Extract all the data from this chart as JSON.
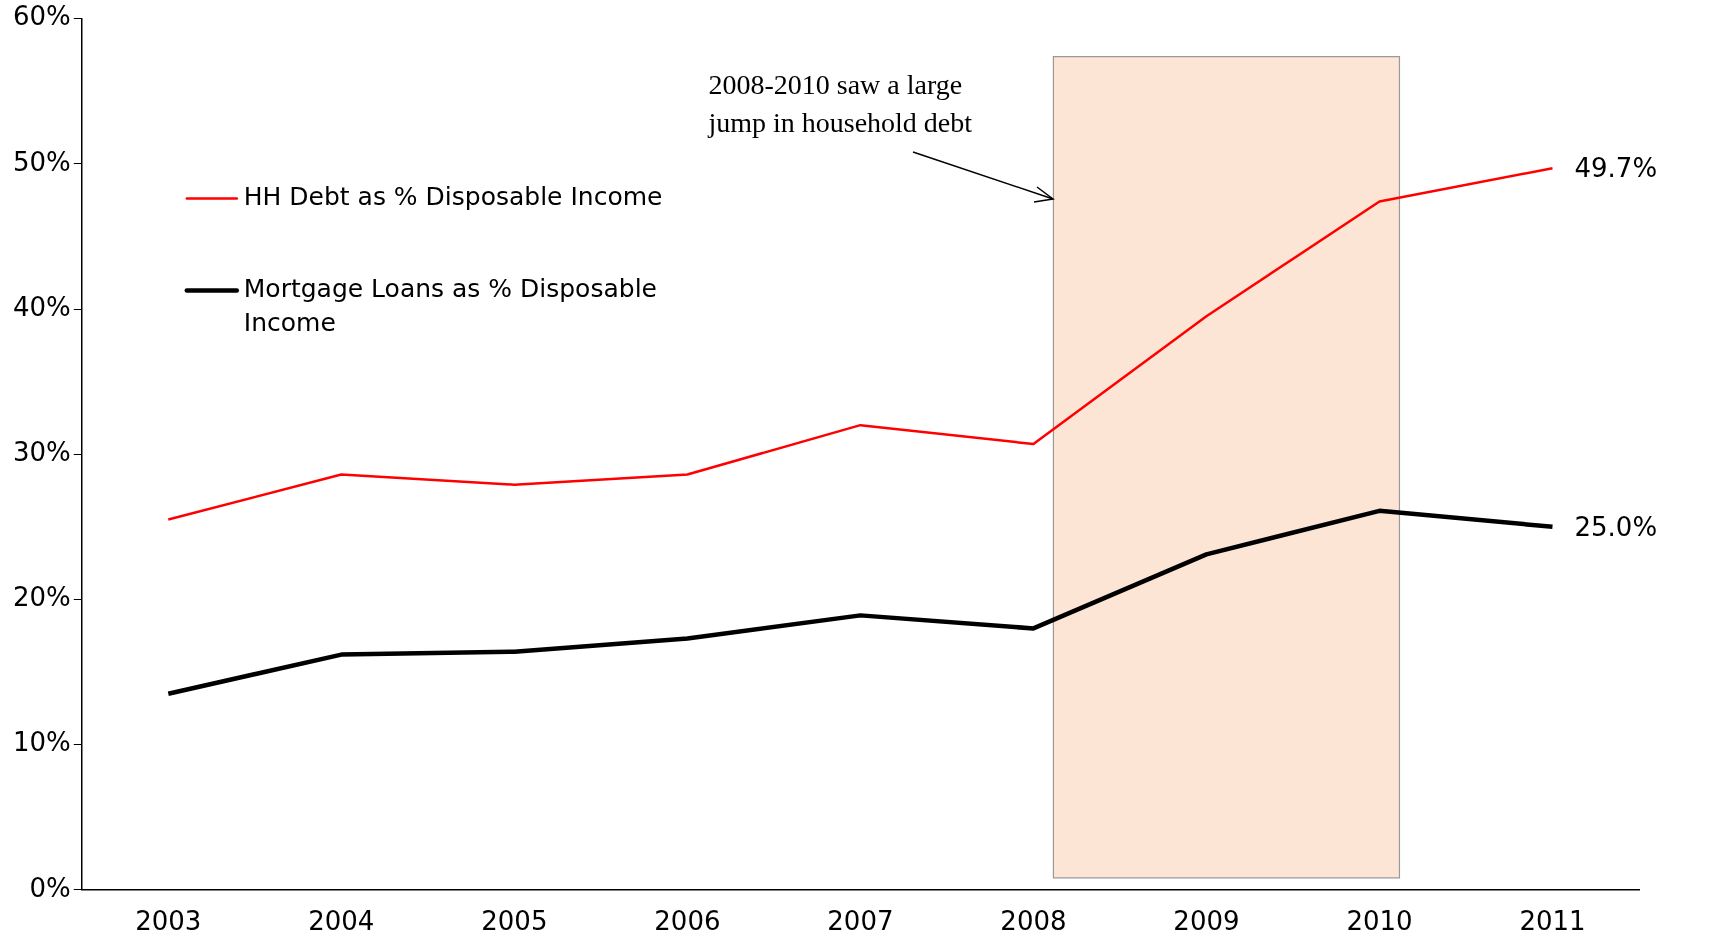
{
  "chart_data": {
    "type": "line",
    "categories": [
      "2003",
      "2004",
      "2005",
      "2006",
      "2007",
      "2008",
      "2009",
      "2010",
      "2011"
    ],
    "series": [
      {
        "name": "HH Debt as % Disposable Income",
        "color": "#ff0000",
        "values": [
          25.5,
          28.6,
          27.9,
          28.6,
          32.0,
          30.7,
          39.5,
          47.4,
          49.7
        ],
        "value_labels": [
          null,
          null,
          null,
          null,
          null,
          null,
          null,
          null,
          "49.7%"
        ]
      },
      {
        "name": "Mortgage Loans as % Disposable Income",
        "color": "#000000",
        "values": [
          13.5,
          16.2,
          16.4,
          17.3,
          18.9,
          18.0,
          23.1,
          26.1,
          25.0
        ],
        "value_labels": [
          null,
          null,
          null,
          null,
          null,
          null,
          null,
          null,
          "25.0%"
        ]
      }
    ],
    "ylim": [
      0,
      60
    ],
    "yticks": [
      {
        "value": 0,
        "label": "0%"
      },
      {
        "value": 10,
        "label": "10%"
      },
      {
        "value": 20,
        "label": "20%"
      },
      {
        "value": 30,
        "label": "30%"
      },
      {
        "value": 40,
        "label": "40%"
      },
      {
        "value": 50,
        "label": "50%"
      },
      {
        "value": 60,
        "label": "60%"
      }
    ],
    "bands": [
      {
        "axis": "x",
        "from": "2008",
        "to": "2010",
        "color": "#fde5d6",
        "label": "2008-2010 saw a large jump in household debt"
      }
    ],
    "grid": false,
    "legend": "top left",
    "marker": "none",
    "line_style": "solid"
  }
}
